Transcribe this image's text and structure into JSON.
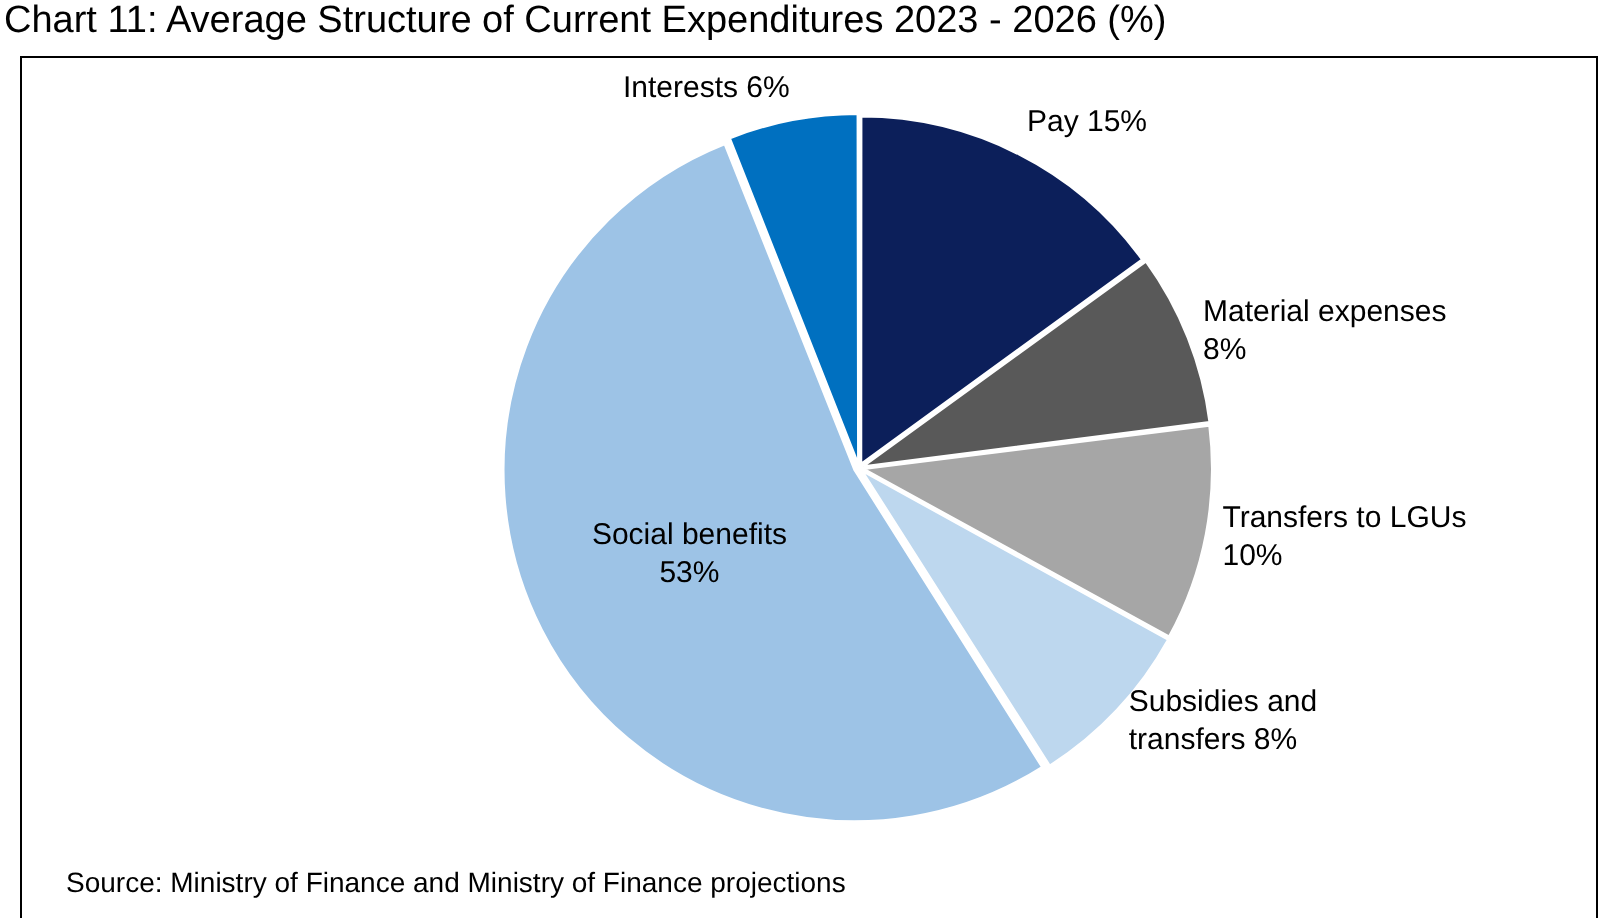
{
  "chart_data": {
    "type": "pie",
    "title": "Chart 11: Average Structure of Current Expenditures 2023 - 2026 (%)",
    "categories": [
      "Pay",
      "Material expenses",
      "Transfers to LGUs",
      "Subsidies and transfers",
      "Social benefits",
      "Interests"
    ],
    "values": [
      15,
      8,
      10,
      8,
      53,
      6
    ],
    "value_labels": [
      "15%",
      "8%",
      "10%",
      "8%",
      "53%",
      "6%"
    ],
    "colors": [
      "#0c1f5a",
      "#595959",
      "#a6a6a6",
      "#bdd7ee",
      "#9dc3e6",
      "#0070c0"
    ],
    "legend": false,
    "annotations": [
      "Source: Ministry of Finance and Ministry of Finance projections"
    ]
  }
}
